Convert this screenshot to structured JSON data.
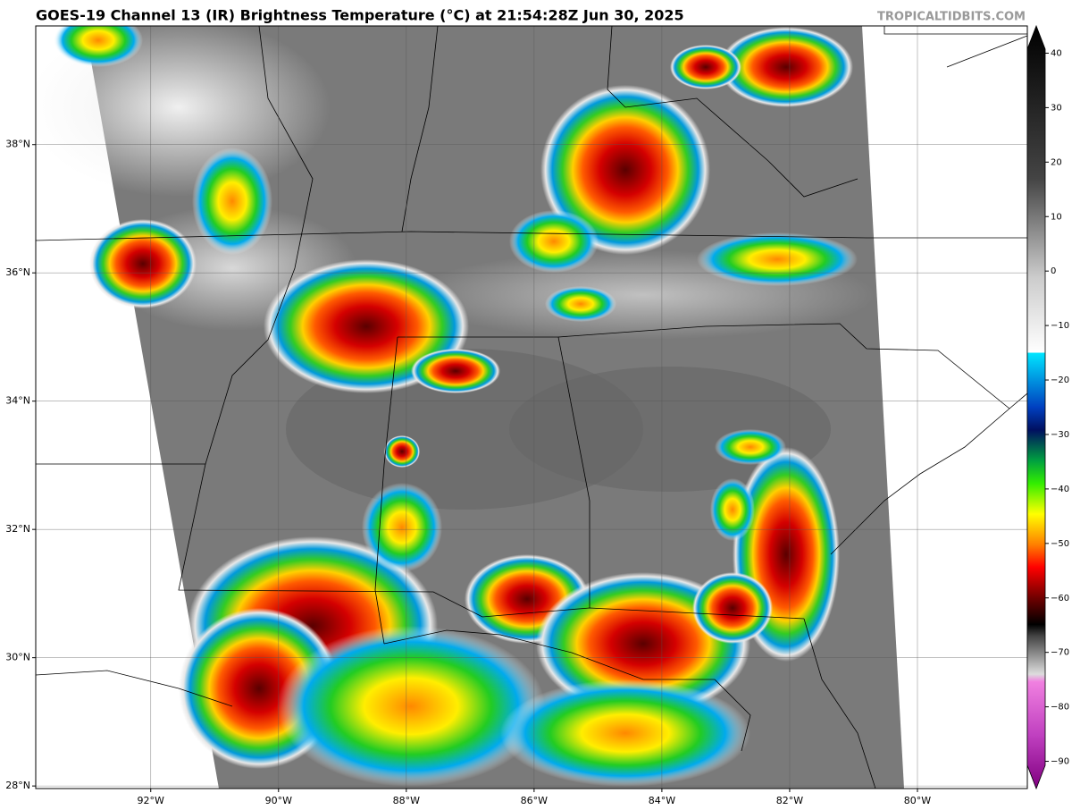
{
  "title": "GOES-19 Channel 13 (IR) Brightness Temperature (°C) at 21:54:28Z Jun 30, 2025",
  "watermark": "TROPICALTIDBITS.COM",
  "map": {
    "xlim": [
      -93.8,
      -78.28
    ],
    "ylim": [
      27.96,
      39.85
    ],
    "xticks": [
      {
        "value": -92,
        "label": "92°W"
      },
      {
        "value": -90,
        "label": "90°W"
      },
      {
        "value": -88,
        "label": "88°W"
      },
      {
        "value": -86,
        "label": "86°W"
      },
      {
        "value": -84,
        "label": "84°W"
      },
      {
        "value": -82,
        "label": "82°W"
      },
      {
        "value": -80,
        "label": "80°W"
      }
    ],
    "yticks": [
      {
        "value": 28,
        "label": "28°N"
      },
      {
        "value": 30,
        "label": "30°N"
      },
      {
        "value": 32,
        "label": "32°N"
      },
      {
        "value": 34,
        "label": "34°N"
      },
      {
        "value": 36,
        "label": "36°N"
      },
      {
        "value": 38,
        "label": "38°N"
      }
    ],
    "grid": true
  },
  "colorbar": {
    "ylim": [
      -95,
      45
    ],
    "ticks": [
      {
        "value": -90,
        "label": "−90"
      },
      {
        "value": -80,
        "label": "−80"
      },
      {
        "value": -70,
        "label": "−70"
      },
      {
        "value": -60,
        "label": "−60"
      },
      {
        "value": -50,
        "label": "−50"
      },
      {
        "value": -40,
        "label": "−40"
      },
      {
        "value": -30,
        "label": "−30"
      },
      {
        "value": -20,
        "label": "−20"
      },
      {
        "value": -10,
        "label": "−10"
      },
      0,
      10,
      20,
      30,
      40
    ]
  }
}
